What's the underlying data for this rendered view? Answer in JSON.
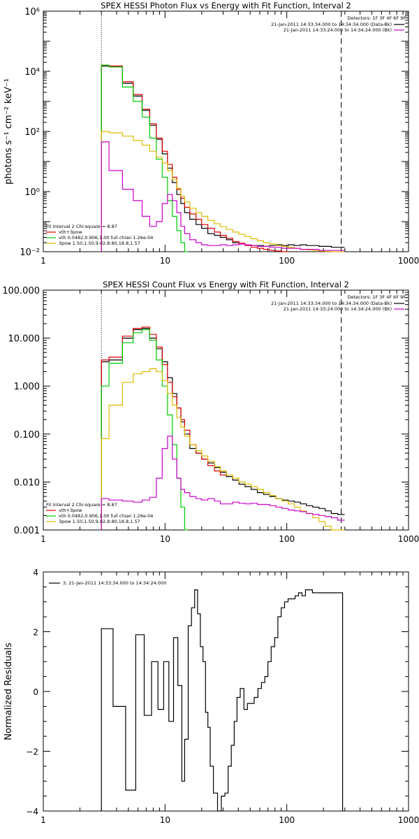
{
  "chart_data": [
    {
      "type": "line",
      "title": "SPEX HESSI Photon Flux vs Energy with Fit Function, Interval 2",
      "ylabel": "photons s⁻¹ cm⁻² keV⁻¹",
      "xlabel": "",
      "xscale": "log",
      "yscale": "log",
      "xlim": [
        1,
        1000
      ],
      "ylim": [
        0.01,
        1000000
      ],
      "x_tick_labels": [
        "1",
        "10",
        "100",
        "1000"
      ],
      "y_tick_labels": [
        "10⁻²",
        "10⁰",
        "10²",
        "10⁴",
        "10⁶"
      ],
      "reference_lines": [
        {
          "x": 3,
          "style": "dotted"
        },
        {
          "x": 280,
          "style": "dashed"
        }
      ],
      "legend_top_right": {
        "header": "Detectors: 1F 3F 4F 6F 9F",
        "entries": [
          {
            "label": "21-Jan-2011 14:33:34.000 to 14:34:34.000 (Data-Bk)",
            "color": "#000000"
          },
          {
            "label": "21-Jan-2011 14:33:24.000 to 14:34:24.000 (Bk)",
            "color": "#cc00cc"
          }
        ]
      },
      "legend_bottom_left": {
        "header": "Fit Interval 2   Chi-square = 8.87",
        "entries": [
          {
            "label": "vth+3pow",
            "color": "#dd0000"
          },
          {
            "label": "vth 0.0482,0.906,1.00  full chian 1.26e-04",
            "color": "#00cc00"
          },
          {
            "label": "3pow 1.50,1.50,9.02,8.80,18.8,1.57",
            "color": "#ddbb00"
          }
        ]
      },
      "series": [
        {
          "name": "Data-Bk",
          "color": "#000000",
          "x": [
            3,
            4,
            5,
            6,
            7,
            8,
            9,
            10,
            11,
            12,
            13,
            14,
            15,
            17,
            19,
            21,
            24,
            27,
            30,
            34,
            38,
            43,
            48,
            54,
            61,
            68,
            77,
            86,
            97,
            109,
            122,
            137,
            154,
            173,
            195,
            219,
            246,
            280
          ],
          "y": [
            15000,
            14000,
            4000,
            1500,
            500,
            160,
            55,
            18,
            6,
            2,
            0.8,
            0.4,
            0.2,
            0.12,
            0.08,
            0.06,
            0.04,
            0.035,
            0.03,
            0.025,
            0.02,
            0.018,
            0.017,
            0.016,
            0.016,
            0.015,
            0.016,
            0.017,
            0.016,
            0.017,
            0.016,
            0.017,
            0.016,
            0.016,
            0.015,
            0.015,
            0.014,
            0.014
          ]
        },
        {
          "name": "vth+3pow",
          "color": "#dd0000",
          "x": [
            3,
            4,
            5,
            6,
            7,
            8,
            9,
            10,
            11,
            12,
            13,
            14,
            15,
            17,
            19,
            21,
            24,
            27,
            30,
            34,
            38,
            43,
            48,
            54,
            61,
            68,
            77,
            86,
            97
          ],
          "y": [
            16000,
            15000,
            4500,
            1700,
            550,
            180,
            60,
            22,
            8,
            3,
            1.2,
            0.6,
            0.3,
            0.18,
            0.12,
            0.08,
            0.06,
            0.045,
            0.035,
            0.028,
            0.022,
            0.019,
            0.016,
            0.014,
            0.013,
            0.012,
            0.011,
            0.0105,
            0.01
          ]
        },
        {
          "name": "vth",
          "color": "#00cc00",
          "x": [
            3,
            4,
            5,
            6,
            7,
            8,
            9,
            10,
            11,
            12,
            13,
            14,
            15
          ],
          "y": [
            16000,
            14000,
            3000,
            1000,
            300,
            60,
            12,
            3,
            0.5,
            0.15,
            0.05,
            0.02,
            0.01
          ]
        },
        {
          "name": "3pow",
          "color": "#ddbb00",
          "x": [
            3,
            4,
            5,
            6,
            7,
            8,
            9,
            10,
            11,
            12,
            13,
            14,
            15,
            17,
            19,
            21,
            24,
            27,
            30,
            34,
            38,
            43,
            48,
            54,
            61,
            68,
            77,
            86,
            97,
            109,
            122,
            137,
            154,
            173,
            195,
            219,
            246,
            280
          ],
          "y": [
            100,
            90,
            70,
            50,
            35,
            22,
            14,
            9,
            5,
            2.5,
            1.3,
            0.7,
            0.45,
            0.28,
            0.2,
            0.15,
            0.11,
            0.085,
            0.068,
            0.055,
            0.045,
            0.038,
            0.032,
            0.027,
            0.023,
            0.02,
            0.018,
            0.016,
            0.015,
            0.014,
            0.013,
            0.012,
            0.0115,
            0.011,
            0.0105,
            0.0102,
            0.01,
            0.01
          ]
        },
        {
          "name": "Bk",
          "color": "#cc00cc",
          "x": [
            3,
            4,
            5,
            6,
            7,
            8,
            9,
            10,
            11,
            12,
            13,
            14,
            15,
            17,
            19,
            21,
            24,
            27,
            30,
            34,
            38,
            43,
            48,
            54,
            61,
            68,
            77,
            86,
            97,
            109,
            122,
            137,
            154,
            173,
            195,
            219,
            246,
            280
          ],
          "y": [
            45,
            5,
            1.2,
            0.5,
            0.15,
            0.07,
            0.1,
            0.4,
            0.8,
            0.5,
            0.2,
            0.07,
            0.04,
            0.025,
            0.02,
            0.017,
            0.016,
            0.016,
            0.017,
            0.016,
            0.017,
            0.018,
            0.017,
            0.016,
            0.015,
            0.015,
            0.014,
            0.014,
            0.013,
            0.013,
            0.013,
            0.012,
            0.012,
            0.012,
            0.011,
            0.011,
            0.011,
            0.011
          ]
        }
      ]
    },
    {
      "type": "line",
      "title": "SPEX HESSI Count Flux vs Energy with Fit Function, Interval 2",
      "ylabel": "",
      "xlabel": "",
      "xscale": "log",
      "yscale": "log",
      "xlim": [
        1,
        1000
      ],
      "ylim": [
        0.001,
        100
      ],
      "x_tick_labels": [
        "1",
        "10",
        "100",
        "1000"
      ],
      "y_tick_labels": [
        "0.001",
        "0.010",
        "0.100",
        "1.000",
        "10.000",
        "100.000"
      ],
      "reference_lines": [
        {
          "x": 3,
          "style": "dotted"
        },
        {
          "x": 280,
          "style": "dashed"
        }
      ],
      "legend_top_right": {
        "header": "Detectors: 1F 3F 4F 6F 9F",
        "entries": [
          {
            "label": "21-Jan-2011 14:33:34.000 to 14:34:34.000 (Data-Bk)",
            "color": "#000000"
          },
          {
            "label": "21-Jan-2011 14:33:24.000 to 14:34:24.000 (Bk)",
            "color": "#cc00cc"
          }
        ]
      },
      "legend_bottom_left": {
        "header": "Fit Interval 2   Chi-square = 8.87",
        "entries": [
          {
            "label": "vth+3pow",
            "color": "#dd0000"
          },
          {
            "label": "vth 0.0482,0.906,1.00  full chian 1.26e-04",
            "color": "#00cc00"
          },
          {
            "label": "3pow 1.50,1.50,9.02,8.80,18.8,1.57",
            "color": "#ddbb00"
          }
        ]
      },
      "series": [
        {
          "name": "Data-Bk",
          "color": "#000000",
          "x": [
            3,
            4,
            5,
            6,
            7,
            8,
            9,
            10,
            11,
            12,
            13,
            14,
            15,
            17,
            19,
            21,
            24,
            27,
            30,
            34,
            38,
            43,
            48,
            54,
            61,
            68,
            77,
            86,
            97,
            109,
            122,
            137,
            154,
            173,
            195,
            219,
            246,
            280
          ],
          "y": [
            3.2,
            3.5,
            10,
            15,
            16,
            10,
            6,
            3.2,
            1.5,
            0.7,
            0.35,
            0.18,
            0.1,
            0.05,
            0.04,
            0.03,
            0.025,
            0.02,
            0.016,
            0.013,
            0.011,
            0.009,
            0.008,
            0.007,
            0.006,
            0.0055,
            0.005,
            0.0045,
            0.0042,
            0.004,
            0.0038,
            0.0035,
            0.0032,
            0.003,
            0.0028,
            0.0025,
            0.0022,
            0.0021
          ]
        },
        {
          "name": "vth+3pow",
          "color": "#dd0000",
          "x": [
            3,
            4,
            5,
            6,
            7,
            8,
            9,
            10,
            11,
            12,
            13,
            14,
            15,
            17,
            19,
            21,
            24,
            27,
            30
          ],
          "y": [
            3.5,
            4,
            11,
            16,
            17,
            12,
            6.5,
            2.8,
            1.2,
            0.6,
            0.35,
            0.2,
            0.12,
            0.06,
            0.04,
            0.03,
            0.022,
            0.017,
            0.014
          ]
        },
        {
          "name": "vth",
          "color": "#00cc00",
          "x": [
            3,
            4,
            5,
            6,
            7,
            8,
            9,
            10,
            11,
            12,
            13,
            14,
            15
          ],
          "y": [
            1.0,
            3,
            8,
            13,
            15,
            9,
            3.5,
            1.0,
            0.25,
            0.06,
            0.012,
            0.003,
            0.001
          ]
        },
        {
          "name": "3pow",
          "color": "#ddbb00",
          "x": [
            3,
            4,
            5,
            6,
            7,
            8,
            9,
            10,
            11,
            12,
            13,
            14,
            15,
            17,
            19,
            21,
            24,
            27,
            30,
            34,
            38,
            43,
            48,
            54,
            61,
            68,
            77,
            86,
            97,
            109,
            122,
            137,
            154,
            173,
            195,
            219,
            246,
            280
          ],
          "y": [
            0.08,
            0.4,
            1.2,
            1.8,
            2.0,
            2.3,
            2.0,
            1.3,
            0.7,
            0.4,
            0.22,
            0.14,
            0.09,
            0.06,
            0.045,
            0.035,
            0.027,
            0.021,
            0.017,
            0.014,
            0.012,
            0.01,
            0.009,
            0.008,
            0.007,
            0.006,
            0.0052,
            0.0045,
            0.004,
            0.0035,
            0.003,
            0.0025,
            0.0022,
            0.0018,
            0.0015,
            0.0012,
            0.001,
            0.0009
          ]
        },
        {
          "name": "Bk",
          "color": "#cc00cc",
          "x": [
            3,
            4,
            5,
            6,
            7,
            8,
            9,
            10,
            11,
            12,
            13,
            14,
            15,
            17,
            19,
            21,
            24,
            27,
            30,
            34,
            38,
            43,
            48,
            54,
            61,
            68,
            77,
            86,
            97,
            109,
            122,
            137,
            154,
            173,
            195,
            219,
            246,
            280
          ],
          "y": [
            0.0045,
            0.0042,
            0.004,
            0.0038,
            0.0042,
            0.0048,
            0.012,
            0.05,
            0.09,
            0.03,
            0.012,
            0.007,
            0.006,
            0.005,
            0.0045,
            0.0042,
            0.0045,
            0.004,
            0.0035,
            0.0035,
            0.0038,
            0.0036,
            0.0035,
            0.0036,
            0.0034,
            0.0034,
            0.0032,
            0.003,
            0.0028,
            0.0026,
            0.0025,
            0.0024,
            0.0022,
            0.0021,
            0.002,
            0.0019,
            0.0018,
            0.0016
          ]
        }
      ]
    },
    {
      "type": "line",
      "title": "",
      "ylabel": "Normalized Residuals",
      "xlabel": "",
      "xscale": "log",
      "yscale": "linear",
      "xlim": [
        1,
        1000
      ],
      "ylim": [
        -4,
        4
      ],
      "x_tick_labels": [
        "1",
        "10",
        "100",
        "1000"
      ],
      "y_tick_labels": [
        "−4",
        "−2",
        "0",
        "2",
        "4"
      ],
      "legend_top_left": {
        "entries": [
          {
            "label": "3, 21-Jan-2011 14:33:34.000 to 14:34:24.000",
            "color": "#000000"
          }
        ]
      },
      "series": [
        {
          "name": "",
          "color": "#000000",
          "x": [
            3,
            3.5,
            4,
            4.5,
            5,
            5.5,
            6,
            6.5,
            7,
            7.5,
            8,
            8.5,
            9,
            9.5,
            10,
            10.5,
            11,
            11.5,
            12,
            12.5,
            13,
            13.5,
            14,
            15,
            16,
            17,
            18,
            19,
            20,
            21,
            22,
            23,
            24,
            26,
            28,
            30,
            32,
            34,
            36,
            38,
            40,
            43,
            46,
            49,
            52,
            56,
            60,
            64,
            68,
            72,
            77,
            82,
            87,
            93,
            99,
            106,
            113,
            121,
            129,
            138,
            147,
            157,
            168,
            179,
            191,
            204,
            218,
            233,
            249,
            266,
            280
          ],
          "y": [
            2.1,
            2.1,
            -0.5,
            -0.5,
            -3.3,
            -3.3,
            1.9,
            1.9,
            -0.8,
            -0.8,
            1.0,
            1.0,
            -0.6,
            -0.6,
            1.0,
            1.0,
            -1.0,
            -1.0,
            1.8,
            1.8,
            0.2,
            0.2,
            -3.0,
            -1.6,
            2.2,
            2.8,
            3.4,
            2.6,
            1.5,
            1.0,
            -0.7,
            -1.2,
            -2.5,
            -3.4,
            -4.0,
            -3.5,
            -3.4,
            -2.5,
            -1.8,
            -1.0,
            -0.2,
            0.1,
            -0.6,
            -0.4,
            -0.4,
            -0.2,
            0.1,
            0.3,
            0.5,
            1.0,
            1.5,
            1.8,
            2.5,
            2.8,
            3.0,
            3.1,
            3.1,
            3.2,
            3.3,
            3.2,
            3.4,
            3.4,
            3.3,
            3.3,
            3.3,
            3.3,
            3.3,
            3.3,
            3.3,
            3.3,
            3.3
          ]
        }
      ]
    }
  ]
}
